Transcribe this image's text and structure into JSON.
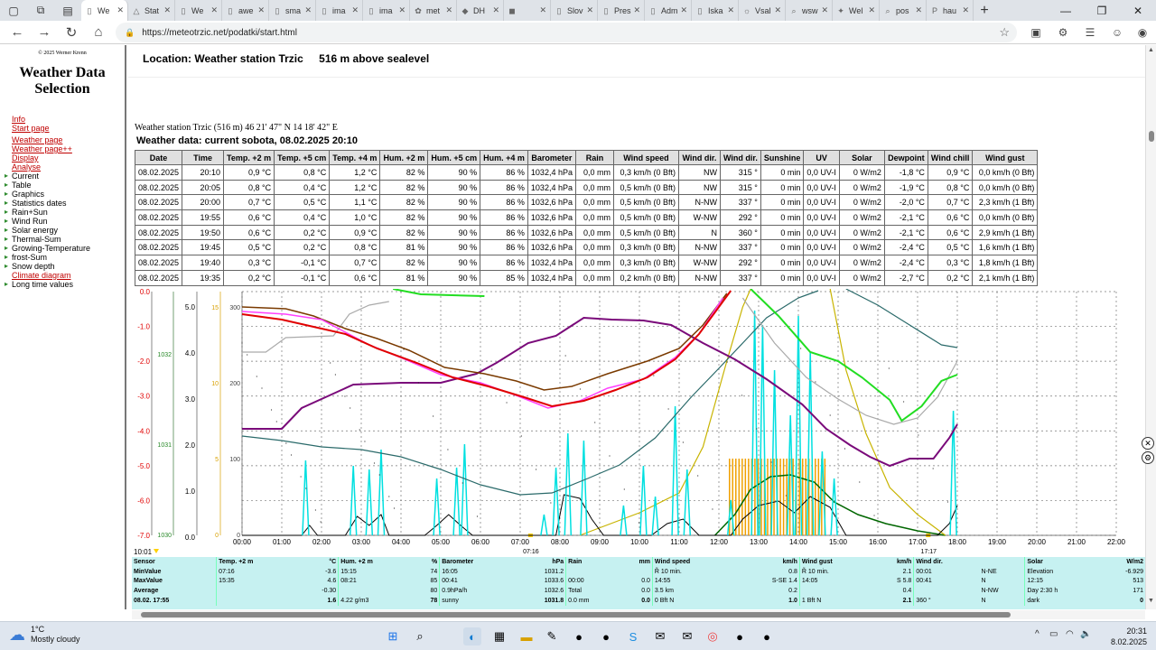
{
  "browser": {
    "tabs": [
      {
        "label": "We",
        "icon": "page-icon",
        "active": true
      },
      {
        "label": "Stat",
        "icon": "triangle-icon"
      },
      {
        "label": "We",
        "icon": "page-icon"
      },
      {
        "label": "awe",
        "icon": "page-icon"
      },
      {
        "label": "sma",
        "icon": "page-icon"
      },
      {
        "label": "ima",
        "icon": "page-icon"
      },
      {
        "label": "ima",
        "icon": "page-icon"
      },
      {
        "label": "met",
        "icon": "leaf-icon"
      },
      {
        "label": "DH",
        "icon": "drop-icon"
      },
      {
        "label": "",
        "icon": "flag-icon"
      },
      {
        "label": "Slov",
        "icon": "page-icon"
      },
      {
        "label": "Pres",
        "icon": "page-icon"
      },
      {
        "label": "Adm",
        "icon": "page-icon"
      },
      {
        "label": "Iska",
        "icon": "page-icon"
      },
      {
        "label": "Vsal",
        "icon": "sun-icon"
      },
      {
        "label": "wsw",
        "icon": "search-icon"
      },
      {
        "label": "Wel",
        "icon": "star-icon"
      },
      {
        "label": "pos",
        "icon": "search-icon"
      },
      {
        "label": "hau",
        "icon": "letter-icon"
      }
    ],
    "url": "https://meteotrzic.net/podatki/start.html"
  },
  "sidebar": {
    "copyright": "© 2025 Werner Krenn",
    "title": "Weather Data Selection",
    "links_top": [
      "Info",
      "Start page"
    ],
    "links_mid": [
      "Weather page",
      "Weather page++",
      "Display",
      "Analyse"
    ],
    "items": [
      "Current",
      "Table",
      "Graphics",
      "Statistics dates",
      "Rain+Sun",
      "Wind Run",
      "Solar energy",
      "Thermal-Sum",
      "Growing-Temperature",
      "frost-Sum",
      "Snow depth"
    ],
    "climate_link": "Climate diagram",
    "last_item": "Long time values"
  },
  "header": {
    "location_label": "Location: Weather station Trzic",
    "altitude": "516 m above sealevel"
  },
  "station_line": "Weather station Trzic (516 m) 46 21' 47\" N 14 18' 42\" E",
  "weather_title": "Weather data: current sobota, 08.02.2025 20:10",
  "table": {
    "headers": [
      "Date",
      "Time",
      "Temp. +2 m",
      "Temp. +5 cm",
      "Temp. +4 m",
      "Hum. +2 m",
      "Hum. +5 cm",
      "Hum. +4 m",
      "Barometer",
      "Rain",
      "Wind speed",
      "Wind dir.",
      "Wind dir.",
      "Sunshine",
      "UV",
      "Solar",
      "Dewpoint",
      "Wind chill",
      "Wind gust"
    ],
    "rows": [
      [
        "08.02.2025",
        "20:10",
        "0,9 °C",
        "0,8 °C",
        "1,2 °C",
        "82 %",
        "90 %",
        "86 %",
        "1032,4 hPa",
        "0,0 mm",
        "0,3 km/h (0 Bft)",
        "NW",
        "315 °",
        "0 min",
        "0,0 UV-I",
        "0 W/m2",
        "-1,8 °C",
        "0,9 °C",
        "0,0 km/h (0 Bft)"
      ],
      [
        "08.02.2025",
        "20:05",
        "0,8 °C",
        "0,4 °C",
        "1,2 °C",
        "82 %",
        "90 %",
        "86 %",
        "1032,4 hPa",
        "0,0 mm",
        "0,5 km/h (0 Bft)",
        "NW",
        "315 °",
        "0 min",
        "0,0 UV-I",
        "0 W/m2",
        "-1,9 °C",
        "0,8 °C",
        "0,0 km/h (0 Bft)"
      ],
      [
        "08.02.2025",
        "20:00",
        "0,7 °C",
        "0,5 °C",
        "1,1 °C",
        "82 %",
        "90 %",
        "86 %",
        "1032,6 hPa",
        "0,0 mm",
        "0,5 km/h (0 Bft)",
        "N-NW",
        "337 °",
        "0 min",
        "0,0 UV-I",
        "0 W/m2",
        "-2,0 °C",
        "0,7 °C",
        "2,3 km/h (1 Bft)"
      ],
      [
        "08.02.2025",
        "19:55",
        "0,6 °C",
        "0,4 °C",
        "1,0 °C",
        "82 %",
        "90 %",
        "86 %",
        "1032,6 hPa",
        "0,0 mm",
        "0,5 km/h (0 Bft)",
        "W-NW",
        "292 °",
        "0 min",
        "0,0 UV-I",
        "0 W/m2",
        "-2,1 °C",
        "0,6 °C",
        "0,0 km/h (0 Bft)"
      ],
      [
        "08.02.2025",
        "19:50",
        "0,6 °C",
        "0,2 °C",
        "0,9 °C",
        "82 %",
        "90 %",
        "86 %",
        "1032,6 hPa",
        "0,0 mm",
        "0,5 km/h (0 Bft)",
        "N",
        "360 °",
        "0 min",
        "0,0 UV-I",
        "0 W/m2",
        "-2,1 °C",
        "0,6 °C",
        "2,9 km/h (1 Bft)"
      ],
      [
        "08.02.2025",
        "19:45",
        "0,5 °C",
        "0,2 °C",
        "0,8 °C",
        "81 %",
        "90 %",
        "86 %",
        "1032,6 hPa",
        "0,0 mm",
        "0,3 km/h (0 Bft)",
        "N-NW",
        "337 °",
        "0 min",
        "0,0 UV-I",
        "0 W/m2",
        "-2,4 °C",
        "0,5 °C",
        "1,6 km/h (1 Bft)"
      ],
      [
        "08.02.2025",
        "19:40",
        "0,3 °C",
        "-0,1 °C",
        "0,7 °C",
        "82 %",
        "90 %",
        "86 %",
        "1032,4 hPa",
        "0,0 mm",
        "0,3 km/h (0 Bft)",
        "W-NW",
        "292 °",
        "0 min",
        "0,0 UV-I",
        "0 W/m2",
        "-2,4 °C",
        "0,3 °C",
        "1,8 km/h (1 Bft)"
      ],
      [
        "08.02.2025",
        "19:35",
        "0,2 °C",
        "-0,1 °C",
        "0,6 °C",
        "81 %",
        "90 %",
        "85 %",
        "1032,4 hPa",
        "0,0 mm",
        "0,2 km/h (0 Bft)",
        "N-NW",
        "337 °",
        "0 min",
        "0,0 UV-I",
        "0 W/m2",
        "-2,7 °C",
        "0,2 °C",
        "2,1 km/h (1 Bft)"
      ]
    ]
  },
  "chart_data": {
    "type": "line",
    "x_ticks": [
      "00:00",
      "01:00",
      "02:00",
      "03:00",
      "04:00",
      "05:00",
      "06:00",
      "07:00",
      "08:00",
      "09:00",
      "10:00",
      "11:00",
      "12:00",
      "13:00",
      "14:00",
      "15:00",
      "16:00",
      "17:00",
      "18:00",
      "19:00",
      "20:00",
      "21:00",
      "22:00"
    ],
    "x_extra": [
      "07:16",
      "17:17"
    ],
    "start_label": "10:01",
    "y_temp_ticks": [
      "0.0",
      "-1.0",
      "-2.0",
      "-3.0",
      "-4.0",
      "-5.0",
      "-6.0",
      "-7.0"
    ],
    "y_baro_ticks": [
      "1032",
      "1031",
      "1030"
    ],
    "y_wind_ticks": [
      "5.0",
      "4.0",
      "3.0",
      "2.0",
      "1.0",
      "0.0"
    ],
    "y_sun_ticks": [
      "15",
      "10",
      "5",
      "0"
    ],
    "y_solar_ticks": [
      "300",
      "200",
      "100",
      "0"
    ],
    "colors": {
      "temp2m": "#e00000",
      "temp5cm": "#ff40ff",
      "temp4m": "#7a3a00",
      "humidity": "#7a0a7a",
      "barometer": "#2a6a6a",
      "dewpoint": "#aaaaaa",
      "windchill": "#22dd22",
      "wind": "#00e0e0",
      "gust": "#000000",
      "solar": "#006600",
      "sun": "#f0a000",
      "uv": "#c8b400"
    }
  },
  "stats": {
    "headers": [
      "Sensor",
      "Temp. +2 m",
      "°C",
      "Hum. +2 m",
      "%",
      "Barometer",
      "hPa",
      "Rain",
      "mm",
      "Wind speed",
      "km/h",
      "Wind gust",
      "km/h",
      "Wind dir.",
      "",
      "Solar",
      "W/m2"
    ],
    "rows": [
      [
        "MinValue",
        "07:16",
        "-3.6",
        "15:15",
        "74",
        "16:05",
        "1031.2",
        "",
        "",
        "Ř 10 min.",
        "0.8",
        "Ř 10 min.",
        "2.1",
        "00:01",
        "N-NE",
        "Elevation",
        "-6.929"
      ],
      [
        "MaxValue",
        "15:35",
        "4.6",
        "08:21",
        "85",
        "00:41",
        "1033.6",
        "00:00",
        "0.0",
        "14:55",
        "S-SE 1.4",
        "14:05",
        "S 5.8",
        "00:41",
        "N",
        "12:15",
        "513"
      ],
      [
        "Average",
        "",
        "-0.30",
        "",
        "80",
        "0.9hPa/h",
        "1032.6",
        "Total",
        "0.0",
        "3.5 km",
        "0.2",
        "",
        "0.4",
        "",
        "N-NW",
        "Day 2:30 h",
        "171"
      ],
      [
        "08.02. 17:55",
        "",
        "1.6",
        "4.22 g/m3",
        "78",
        "sunny",
        "1031.8",
        "0.0 mm",
        "0.0",
        "0 Bft N",
        "1.0",
        "1 Bft N",
        "2.1",
        "360 °",
        "N",
        "dark",
        "0"
      ]
    ]
  },
  "taskbar": {
    "weather_temp": "1°C",
    "weather_desc": "Mostly cloudy",
    "time": "20:31",
    "date": "8.02.2025"
  }
}
